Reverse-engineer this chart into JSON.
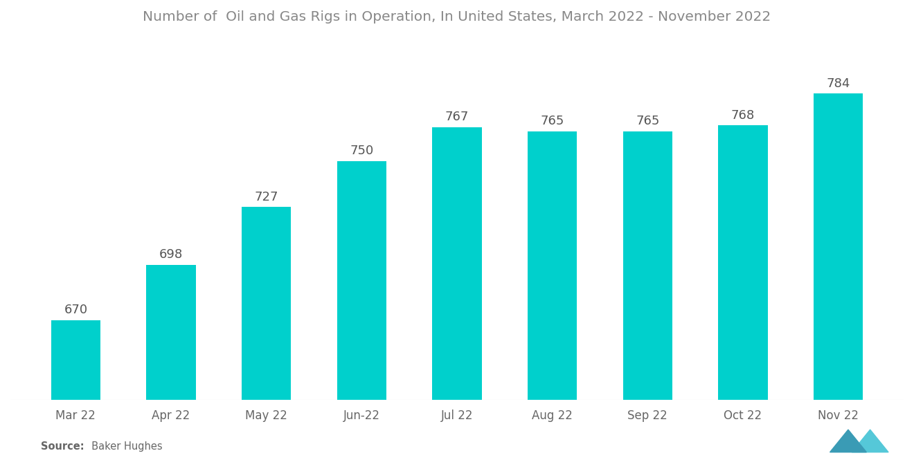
{
  "title": "Number of  Oil and Gas Rigs in Operation, In United States, March 2022 - November 2022",
  "categories": [
    "Mar 22",
    "Apr 22",
    "May 22",
    "Jun-22",
    "Jul 22",
    "Aug 22",
    "Sep 22",
    "Oct 22",
    "Nov 22"
  ],
  "values": [
    670,
    698,
    727,
    750,
    767,
    765,
    765,
    768,
    784
  ],
  "bar_color": "#00D0CC",
  "title_color": "#888888",
  "label_color": "#555555",
  "tick_color": "#666666",
  "source_label": "Source:",
  "source_value": "  Baker Hughes",
  "background_color": "#ffffff",
  "ylim_min": 630,
  "ylim_max": 810,
  "title_fontsize": 14.5,
  "label_fontsize": 13,
  "tick_fontsize": 12,
  "bar_width": 0.52
}
